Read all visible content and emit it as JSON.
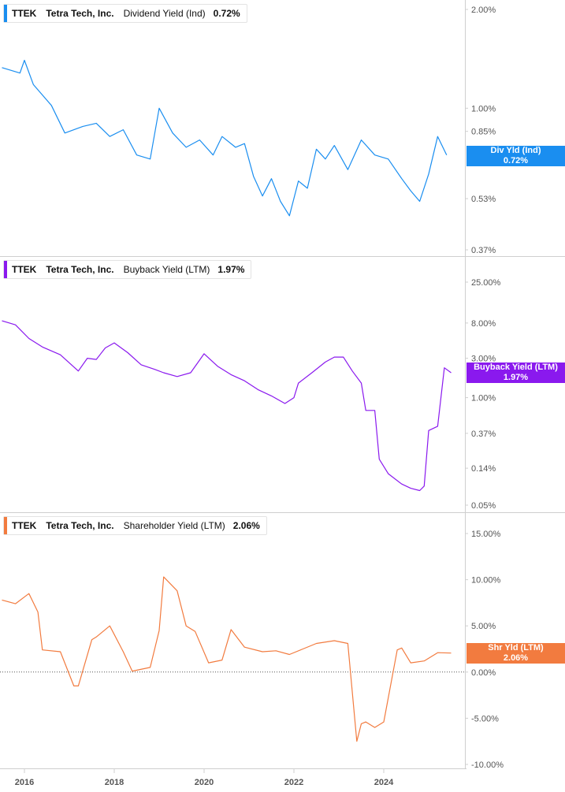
{
  "x_axis": {
    "tick_labels": [
      "2016",
      "2018",
      "2020",
      "2022",
      "2024"
    ]
  },
  "chart_data": [
    {
      "type": "line",
      "ticker": "TTEK",
      "company": "Tetra Tech, Inc.",
      "metric": "Dividend Yield (Ind)",
      "current_value": "0.72%",
      "badge": {
        "name": "Div Yld (Ind)",
        "value": "0.72%"
      },
      "color": "#1a8ef0",
      "y_scale": "log",
      "y_tick_labels": [
        "2.00%",
        "1.00%",
        "0.85%",
        "0.53%",
        "0.37%"
      ],
      "y_tick_values": [
        2.0,
        1.0,
        0.85,
        0.53,
        0.37
      ],
      "x": [
        2015.5,
        2015.9,
        2016.0,
        2016.2,
        2016.6,
        2016.9,
        2017.3,
        2017.6,
        2017.9,
        2018.2,
        2018.5,
        2018.8,
        2019.0,
        2019.3,
        2019.6,
        2019.9,
        2020.2,
        2020.4,
        2020.7,
        2020.9,
        2021.1,
        2021.3,
        2021.5,
        2021.7,
        2021.9,
        2022.1,
        2022.3,
        2022.5,
        2022.7,
        2022.9,
        2023.2,
        2023.5,
        2023.8,
        2024.1,
        2024.4,
        2024.6,
        2024.8,
        2025.0,
        2025.2,
        2025.4
      ],
      "y": [
        1.33,
        1.28,
        1.4,
        1.18,
        1.02,
        0.84,
        0.88,
        0.9,
        0.82,
        0.86,
        0.72,
        0.7,
        1.0,
        0.84,
        0.76,
        0.8,
        0.72,
        0.82,
        0.76,
        0.78,
        0.62,
        0.54,
        0.61,
        0.52,
        0.47,
        0.6,
        0.57,
        0.75,
        0.7,
        0.77,
        0.65,
        0.8,
        0.72,
        0.7,
        0.61,
        0.56,
        0.52,
        0.63,
        0.82,
        0.72
      ]
    },
    {
      "type": "line",
      "ticker": "TTEK",
      "company": "Tetra Tech, Inc.",
      "metric": "Buyback Yield (LTM)",
      "current_value": "1.97%",
      "badge": {
        "name": "Buyback Yield (LTM)",
        "value": "1.97%"
      },
      "color": "#8a19ee",
      "y_scale": "log",
      "y_tick_labels": [
        "25.00%",
        "8.00%",
        "3.00%",
        "1.00%",
        "0.37%",
        "0.14%",
        "0.05%"
      ],
      "y_tick_values": [
        25.0,
        8.0,
        3.0,
        1.0,
        0.37,
        0.14,
        0.05
      ],
      "x": [
        2015.5,
        2015.8,
        2016.1,
        2016.4,
        2016.8,
        2017.2,
        2017.4,
        2017.6,
        2017.8,
        2018.0,
        2018.3,
        2018.6,
        2018.9,
        2019.1,
        2019.4,
        2019.7,
        2020.0,
        2020.3,
        2020.6,
        2020.9,
        2021.2,
        2021.5,
        2021.8,
        2022.0,
        2022.1,
        2022.4,
        2022.7,
        2022.9,
        2023.1,
        2023.3,
        2023.5,
        2023.6,
        2023.8,
        2023.9,
        2024.1,
        2024.4,
        2024.6,
        2024.8,
        2024.9,
        2025.0,
        2025.2,
        2025.35,
        2025.5
      ],
      "y": [
        8.5,
        7.6,
        5.2,
        4.1,
        3.3,
        2.1,
        3.0,
        2.9,
        4.0,
        4.6,
        3.5,
        2.5,
        2.2,
        2.0,
        1.8,
        2.0,
        3.4,
        2.4,
        1.9,
        1.6,
        1.25,
        1.05,
        0.85,
        1.0,
        1.5,
        2.0,
        2.7,
        3.1,
        3.1,
        2.1,
        1.5,
        0.7,
        0.7,
        0.18,
        0.12,
        0.09,
        0.08,
        0.075,
        0.085,
        0.4,
        0.45,
        2.3,
        2.0
      ]
    },
    {
      "type": "line",
      "ticker": "TTEK",
      "company": "Tetra Tech, Inc.",
      "metric": "Shareholder Yield (LTM)",
      "current_value": "2.06%",
      "badge": {
        "name": "Shr Yld (LTM)",
        "value": "2.06%"
      },
      "color": "#f27b3f",
      "y_scale": "linear",
      "ylim": [
        -10,
        16
      ],
      "zero_line": true,
      "y_tick_labels": [
        "15.00%",
        "10.00%",
        "5.00%",
        "0.00%",
        "-5.00%",
        "-10.00%"
      ],
      "y_tick_values": [
        15,
        10,
        5,
        0,
        -5,
        -10
      ],
      "x": [
        2015.5,
        2015.8,
        2016.1,
        2016.3,
        2016.4,
        2016.8,
        2017.1,
        2017.2,
        2017.5,
        2017.6,
        2017.9,
        2018.2,
        2018.4,
        2018.8,
        2019.0,
        2019.1,
        2019.4,
        2019.6,
        2019.8,
        2020.1,
        2020.4,
        2020.6,
        2020.9,
        2021.3,
        2021.6,
        2021.9,
        2022.2,
        2022.5,
        2022.9,
        2023.2,
        2023.4,
        2023.5,
        2023.6,
        2023.8,
        2024.0,
        2024.3,
        2024.4,
        2024.6,
        2024.9,
        2025.2,
        2025.5
      ],
      "y": [
        7.8,
        7.4,
        8.5,
        6.5,
        2.4,
        2.2,
        -1.5,
        -1.5,
        3.5,
        3.8,
        5.0,
        2.2,
        0.1,
        0.5,
        4.5,
        10.3,
        8.8,
        5.0,
        4.4,
        1.0,
        1.3,
        4.6,
        2.7,
        2.2,
        2.3,
        1.9,
        2.5,
        3.1,
        3.4,
        3.1,
        -7.5,
        -5.6,
        -5.4,
        -6.0,
        -5.4,
        2.4,
        2.6,
        1.0,
        1.2,
        2.1,
        2.06
      ]
    }
  ]
}
